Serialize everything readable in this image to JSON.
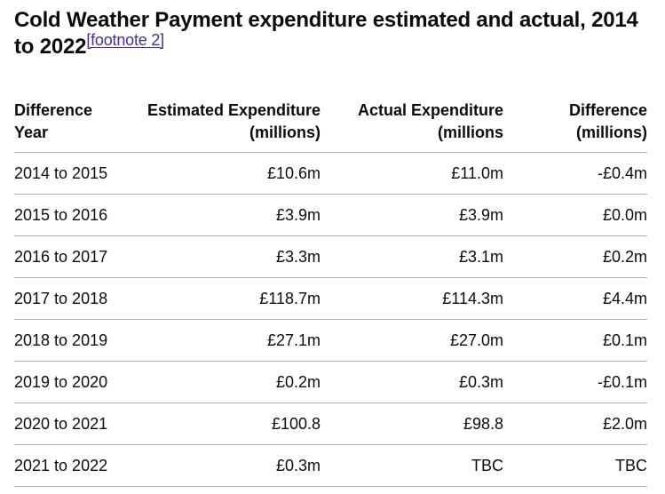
{
  "title": {
    "text": "Cold Weather Payment expenditure estimated and actual, 2014 to 2022",
    "footnote_link": "[footnote 2]"
  },
  "table": {
    "headers": [
      [
        "Difference",
        "Year"
      ],
      [
        "Estimated Expenditure",
        "(millions)"
      ],
      [
        "Actual Expenditure",
        "(millions"
      ],
      [
        "Difference",
        "(millions)"
      ]
    ],
    "rows": [
      [
        "2014 to 2015",
        "£10.6m",
        "£11.0m",
        "-£0.4m"
      ],
      [
        "2015 to 2016",
        "£3.9m",
        "£3.9m",
        "£0.0m"
      ],
      [
        "2016 to 2017",
        "£3.3m",
        "£3.1m",
        "£0.2m"
      ],
      [
        "2017 to 2018",
        "£118.7m",
        "£114.3m",
        "£4.4m"
      ],
      [
        "2018 to 2019",
        "£27.1m",
        "£27.0m",
        "£0.1m"
      ],
      [
        "2019 to 2020",
        "£0.2m",
        "£0.3m",
        "-£0.1m"
      ],
      [
        "2020 to 2021",
        "£100.8",
        "£98.8",
        "£2.0m"
      ],
      [
        "2021 to 2022",
        "£0.3m",
        "TBC",
        "TBC"
      ]
    ]
  },
  "colors": {
    "text": "#0b0c0c",
    "link": "#4c2c92",
    "rule": "#b1b4b6"
  }
}
